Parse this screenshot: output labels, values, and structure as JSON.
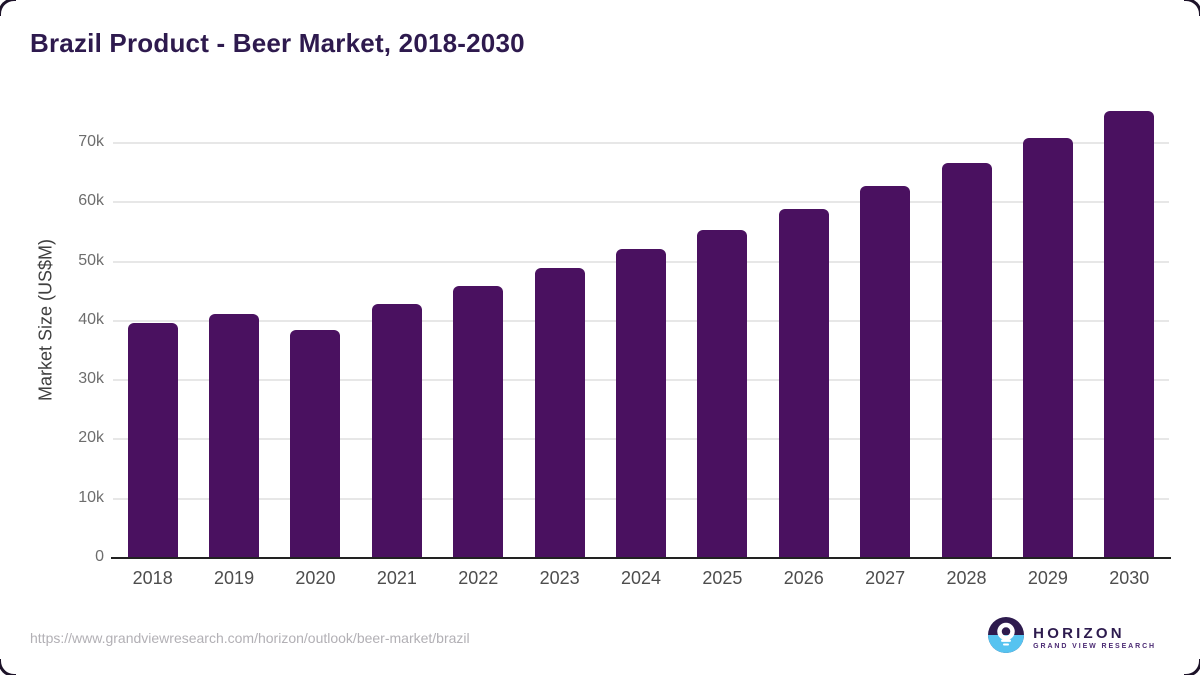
{
  "title": {
    "text": "Brazil Product - Beer Market, 2018-2030"
  },
  "chart_data": {
    "type": "bar",
    "title": "Brazil Product - Beer Market, 2018-2030",
    "categories": [
      "2018",
      "2019",
      "2020",
      "2021",
      "2022",
      "2023",
      "2024",
      "2025",
      "2026",
      "2027",
      "2028",
      "2029",
      "2030"
    ],
    "values": [
      39500,
      41000,
      38300,
      42700,
      45700,
      48800,
      52000,
      55200,
      58700,
      62500,
      66500,
      70700,
      75200
    ],
    "unit": "US$M",
    "xlabel": "",
    "ylabel": "Market Size (US$M)",
    "yticks": [
      "0",
      "10k",
      "20k",
      "30k",
      "40k",
      "50k",
      "60k",
      "70k"
    ],
    "ytick_values": [
      0,
      10000,
      20000,
      30000,
      40000,
      50000,
      60000,
      70000
    ],
    "ylim": [
      0,
      78000
    ],
    "grid": true,
    "legend": false,
    "bar_color": "#4a1160",
    "gridline_color": "#e7e7e7",
    "axis_color": "#222222"
  },
  "footer": {
    "url": "https://www.grandviewresearch.com/horizon/outlook/beer-market/brazil",
    "logo": {
      "name": "HORIZON",
      "subtitle": "GRAND VIEW RESEARCH",
      "mark_top_color": "#2e1b4e",
      "mark_bottom_color": "#56c3f0"
    }
  }
}
